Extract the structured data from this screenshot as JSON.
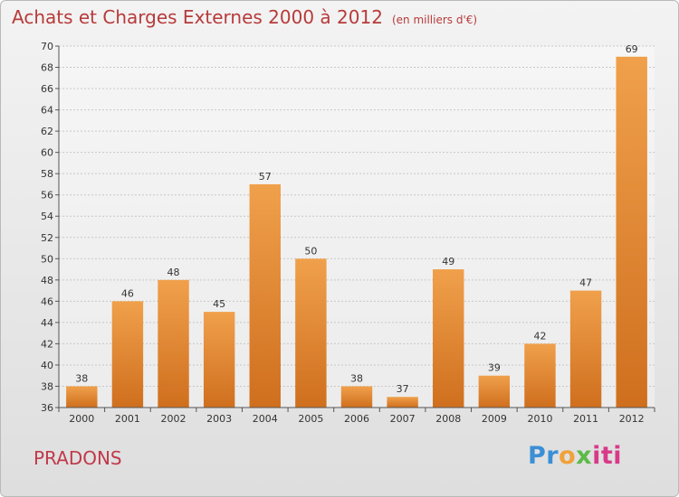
{
  "chart_data": {
    "type": "bar",
    "title": "Achats et Charges Externes 2000 à 2012",
    "subtitle": "(en milliers d'€)",
    "categories": [
      "2000",
      "2001",
      "2002",
      "2003",
      "2004",
      "2005",
      "2006",
      "2007",
      "2008",
      "2009",
      "2010",
      "2011",
      "2012"
    ],
    "values": [
      38,
      46,
      48,
      45,
      57,
      50,
      38,
      37,
      49,
      39,
      42,
      47,
      69
    ],
    "ylim": [
      36,
      70
    ],
    "yticks": [
      36,
      38,
      40,
      42,
      44,
      46,
      48,
      50,
      52,
      54,
      56,
      58,
      60,
      62,
      64,
      66,
      68,
      70
    ],
    "grid": true,
    "bar_color": "#f0a04b",
    "bar_color_dark": "#cf6f1e"
  },
  "commune": "PRADONS",
  "logo": {
    "p1": "Pr",
    "p2": "o",
    "p3": "x",
    "p4": "iti"
  }
}
